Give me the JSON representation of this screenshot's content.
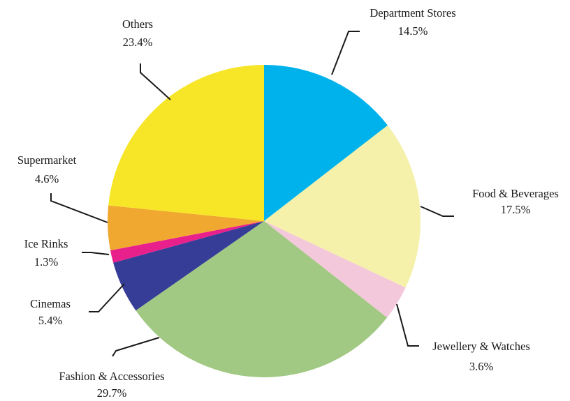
{
  "chart_data": {
    "type": "pie",
    "start": "12 o'clock",
    "direction": "clockwise",
    "slices": [
      {
        "label": "Department Stores",
        "value": 14.5,
        "value_label": "14.5%",
        "color": "#00b2ec"
      },
      {
        "label": "Food & Beverages",
        "value": 17.5,
        "value_label": "17.5%",
        "color": "#f5f1aa"
      },
      {
        "label": "Jewellery & Watches",
        "value": 3.6,
        "value_label": "3.6%",
        "color": "#f3c8da"
      },
      {
        "label": "Fashion & Accessories",
        "value": 29.7,
        "value_label": "29.7%",
        "color": "#a1c983"
      },
      {
        "label": "Cinemas",
        "value": 5.4,
        "value_label": "5.4%",
        "color": "#353d97"
      },
      {
        "label": "Ice Rinks",
        "value": 1.3,
        "value_label": "1.3%",
        "color": "#e8208c"
      },
      {
        "label": "Supermarket",
        "value": 4.6,
        "value_label": "4.6%",
        "color": "#f0a830"
      },
      {
        "label": "Others",
        "value": 23.4,
        "value_label": "23.4%",
        "color": "#f7e628"
      }
    ]
  }
}
